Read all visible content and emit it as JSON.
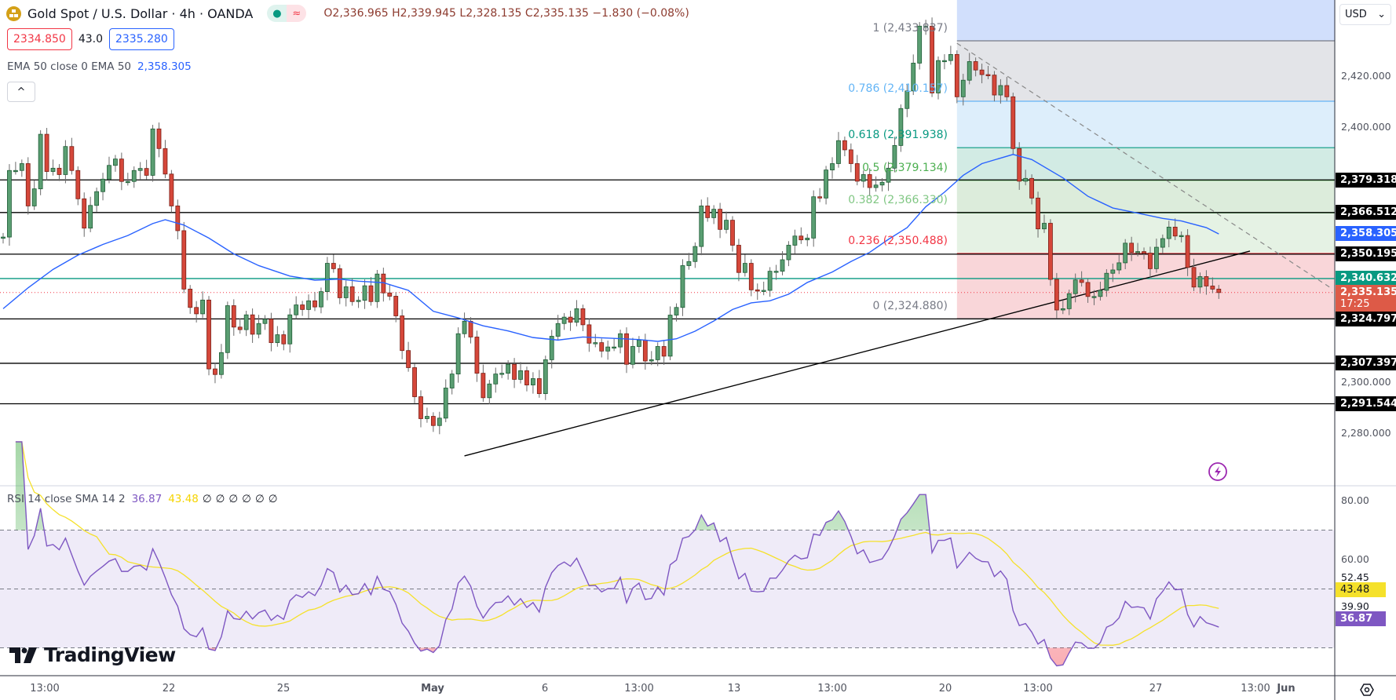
{
  "header": {
    "title": "Gold Spot / U.S. Dollar · 4h · OANDA",
    "status_dot": "●",
    "status_wave": "≈",
    "ohlc": {
      "o_label": "O",
      "o": "2,336.965",
      "h_label": "H",
      "h": "2,339.945",
      "l_label": "L",
      "l": "2,328.135",
      "c_label": "C",
      "c": "2,335.135",
      "change": "−1.830 (−0.08%)"
    },
    "sell_price": "2334.850",
    "spread": "43.0",
    "buy_price": "2335.280",
    "ema_legend": "EMA 50 close 0 EMA 50",
    "ema_value": "2,358.305",
    "collapse_icon": "^"
  },
  "currency_selector": {
    "label": "USD",
    "chevron": "⌄"
  },
  "price_axis": {
    "ticks": [
      "2,420.000",
      "2,400.000",
      "2,300.000",
      "2,280.000"
    ],
    "tags": [
      {
        "text": "2,379.318",
        "color": "#000000"
      },
      {
        "text": "2,366.512",
        "color": "#000000"
      },
      {
        "text": "2,358.305",
        "color": "#2962ff"
      },
      {
        "text": "2,350.195",
        "color": "#000000"
      },
      {
        "text": "2,340.632",
        "color": "#089981"
      },
      {
        "text": "2,324.797",
        "color": "#000000"
      },
      {
        "text": "2,307.397",
        "color": "#000000"
      },
      {
        "text": "2,291.544",
        "color": "#000000"
      }
    ],
    "last_price": "2,335.135",
    "countdown": "17:25",
    "last_price_color": "#dd5a47"
  },
  "rsi": {
    "legend": "RSI 14 close SMA 14 2",
    "rsi_value": "36.87",
    "sma_value": "43.48",
    "na_values": [
      "∅",
      "∅",
      "∅",
      "∅",
      "∅",
      "∅"
    ],
    "axis_ticks": [
      "80.00",
      "60.00"
    ],
    "axis_extra": [
      "52.45",
      "39.90"
    ],
    "tag_sma": "43.48",
    "tag_rsi": "36.87",
    "upper_band": 70,
    "middle_band": 50,
    "lower_band": 30,
    "colors": {
      "rsi": "#7e57c2",
      "sma": "#f5e12b",
      "band_fill": "#efebf8"
    }
  },
  "time_axis": {
    "labels": [
      "13:00",
      "22",
      "25",
      "May",
      "6",
      "13:00",
      "13",
      "13:00",
      "20",
      "13:00",
      "27",
      "13:00",
      "Jun"
    ]
  },
  "brand": {
    "name": "TradingView"
  },
  "icons": {
    "lightning": "lightning-icon",
    "settings": "settings-icon",
    "logo": "gold-bars-icon"
  },
  "chart_data": {
    "type": "candlestick",
    "symbol": "Gold Spot / U.S. Dollar",
    "timeframe": "4h",
    "ylim": [
      2260,
      2450
    ],
    "colors": {
      "up": "#5a9e72",
      "down": "#d5473a",
      "ema": "#2962ff"
    },
    "closes": [
      2356.9,
      2383,
      2383,
      2385.7,
      2369.1,
      2375.8,
      2397.2,
      2382.6,
      2383.9,
      2381.4,
      2392.4,
      2383,
      2371.9,
      2360.4,
      2369.3,
      2374.7,
      2379.6,
      2385,
      2387.5,
      2378.7,
      2378.7,
      2383,
      2383.8,
      2381.1,
      2399.3,
      2391.6,
      2381.6,
      2369.1,
      2359.4,
      2336.5,
      2329.3,
      2326.8,
      2332.2,
      2305.2,
      2303,
      2311.6,
      2330,
      2321.6,
      2320.6,
      2326.4,
      2318.8,
      2323,
      2324.7,
      2315.5,
      2318.6,
      2315,
      2326.4,
      2330.3,
      2328.5,
      2331.9,
      2329.5,
      2335.5,
      2346.6,
      2344.5,
      2333.1,
      2337.4,
      2331.6,
      2332.1,
      2337.8,
      2331.6,
      2342.4,
      2335,
      2333.7,
      2326,
      2312.4,
      2305.7,
      2294.3,
      2285.7,
      2286.6,
      2283,
      2285.9,
      2297.7,
      2303.2,
      2319,
      2323.9,
      2317.7,
      2303.5,
      2293.9,
      2299.3,
      2303.2,
      2303.5,
      2307,
      2301.1,
      2304.5,
      2298.9,
      2301.4,
      2295.5,
      2308.8,
      2318,
      2323,
      2325.5,
      2323.5,
      2328.8,
      2322.5,
      2315.3,
      2315.5,
      2312.2,
      2313.8,
      2313.8,
      2319,
      2307,
      2314,
      2316.5,
      2308.3,
      2308.8,
      2314,
      2310.2,
      2326.3,
      2329.3,
      2345.7,
      2347.3,
      2353.2,
      2369.1,
      2364.5,
      2367.8,
      2359.9,
      2363.5,
      2353.7,
      2343,
      2346.6,
      2336.2,
      2335.7,
      2336,
      2343.5,
      2343.5,
      2348,
      2353.7,
      2357.3,
      2355.8,
      2356.5,
      2372.7,
      2372.2,
      2383.2,
      2385.7,
      2394.7,
      2391.1,
      2385.7,
      2378.8,
      2381.4,
      2376.3,
      2377.3,
      2378.4,
      2383.9,
      2392.8,
      2407.3,
      2414.2,
      2425.1,
      2439.6,
      2439.6,
      2413.4,
      2426.1,
      2426.1,
      2428.5,
      2411.9,
      2418.4,
      2425.7,
      2422.4,
      2420.6,
      2420.4,
      2412.6,
      2416.3,
      2411.9,
      2391.6,
      2378.8,
      2379.9,
      2372.2,
      2360.1,
      2362.3,
      2340.3,
      2328.3,
      2328.8,
      2334.7,
      2340.1,
      2339.1,
      2333.6,
      2333.6,
      2336,
      2342.7,
      2344,
      2346.8,
      2354.5,
      2350.9,
      2351.2,
      2350.6,
      2344.5,
      2352.9,
      2356.3,
      2360.8,
      2357.3,
      2357.5,
      2345,
      2337.3,
      2341.4,
      2337.7,
      2336.5,
      2335.135
    ],
    "ema50": [
      [
        0,
        2328.8
      ],
      [
        4,
        2337
      ],
      [
        8,
        2344.2
      ],
      [
        12,
        2349.8
      ],
      [
        16,
        2354
      ],
      [
        20,
        2357.5
      ],
      [
        24,
        2362.2
      ],
      [
        26,
        2363.7
      ],
      [
        29,
        2361.6
      ],
      [
        33,
        2356.5
      ],
      [
        37,
        2350.3
      ],
      [
        41,
        2345.7
      ],
      [
        46,
        2341.6
      ],
      [
        50,
        2340
      ],
      [
        54,
        2340.4
      ],
      [
        57,
        2339.6
      ],
      [
        61,
        2339
      ],
      [
        65,
        2336
      ],
      [
        69,
        2327.8
      ],
      [
        73,
        2325.2
      ],
      [
        77,
        2322.1
      ],
      [
        81,
        2320.1
      ],
      [
        85,
        2317.5
      ],
      [
        89,
        2316.5
      ],
      [
        93,
        2317.7
      ],
      [
        97,
        2317.3
      ],
      [
        102,
        2316.7
      ],
      [
        105,
        2316
      ],
      [
        108,
        2317
      ],
      [
        111,
        2320
      ],
      [
        114,
        2324
      ],
      [
        117,
        2328.5
      ],
      [
        120,
        2331.1
      ],
      [
        123,
        2331.9
      ],
      [
        126,
        2334.5
      ],
      [
        129,
        2339.1
      ],
      [
        133,
        2343.2
      ],
      [
        136,
        2347.3
      ],
      [
        139,
        2350.9
      ],
      [
        142,
        2356
      ],
      [
        145,
        2360.6
      ],
      [
        148,
        2368.8
      ],
      [
        151,
        2374.5
      ],
      [
        154,
        2381.1
      ],
      [
        157,
        2385.7
      ],
      [
        162,
        2389.3
      ],
      [
        165,
        2387.3
      ],
      [
        170,
        2380.1
      ],
      [
        174,
        2372.9
      ],
      [
        178,
        2368.3
      ],
      [
        182,
        2366.3
      ],
      [
        186,
        2364.2
      ],
      [
        189,
        2363.2
      ],
      [
        193,
        2360.6
      ],
      [
        195,
        2358.1
      ]
    ],
    "horizontal_levels": [
      2379.318,
      2366.512,
      2350.195,
      2324.797,
      2307.397,
      2291.544
    ],
    "support_level": 2340.632,
    "last_price": 2335.135,
    "ascending_trendline": [
      [
        74,
        2271.1
      ],
      [
        200,
        2351.4
      ]
    ],
    "descending_trendline": [
      [
        153,
        2432.9
      ],
      [
        213,
        2336.9
      ]
    ],
    "fibonacci": {
      "start_index": 153,
      "levels": [
        {
          "ratio": 1,
          "price": 2433.837,
          "label": "1 (2,433.837)",
          "color": "#787b86",
          "fill": "#d1dffc"
        },
        {
          "ratio": 0.786,
          "price": 2410.157,
          "label": "0.786 (2,410.157)",
          "color": "#64b5f6",
          "fill": "#e3e4e8"
        },
        {
          "ratio": 0.618,
          "price": 2391.938,
          "label": "0.618 (2,391.938)",
          "color": "#089981",
          "fill": "#ddeefb"
        },
        {
          "ratio": 0.5,
          "price": 2379.134,
          "label": "0.5 (2,379.134)",
          "color": "#4caf50",
          "fill": "#d2ebe4"
        },
        {
          "ratio": 0.382,
          "price": 2366.33,
          "label": "0.382 (2,366.330)",
          "color": "#81c784",
          "fill": "#dcecdb"
        },
        {
          "ratio": 0.236,
          "price": 2350.488,
          "label": "0.236 (2,350.488)",
          "color": "#f23645",
          "fill": "#e5f2e4"
        },
        {
          "ratio": 0,
          "price": 2324.88,
          "label": "0 (2,324.880)",
          "color": "#787b86",
          "fill": "#f9d6d9"
        }
      ]
    }
  }
}
